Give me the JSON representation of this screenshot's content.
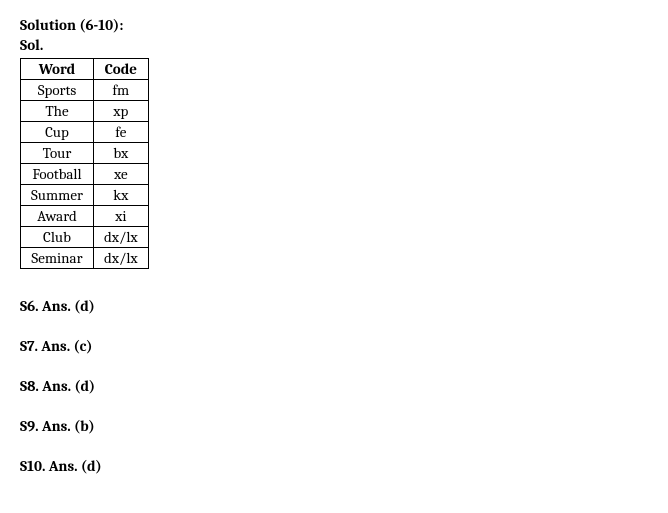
{
  "title": "Solution (6-10):",
  "subtitle": "Sol.",
  "table": {
    "headers": [
      "Word",
      "Code"
    ],
    "rows": [
      [
        "Sports",
        "fm"
      ],
      [
        "The",
        "xp"
      ],
      [
        "Cup",
        "fe"
      ],
      [
        "Tour",
        "bx"
      ],
      [
        "Football",
        "xe"
      ],
      [
        "Summer",
        "kx"
      ],
      [
        "Award",
        "xi"
      ],
      [
        "Club",
        "dx/lx"
      ],
      [
        "Seminar",
        "dx/lx"
      ]
    ]
  },
  "answers": [
    "S6. Ans. (d)",
    "S7. Ans. (c)",
    "S8. Ans. (d)",
    "S9. Ans. (b)",
    "S10. Ans. (d)"
  ]
}
